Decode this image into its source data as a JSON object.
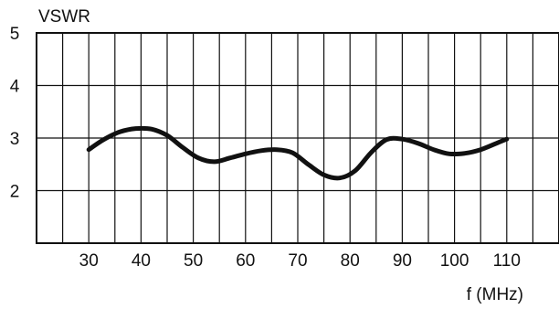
{
  "chart_data": {
    "type": "line",
    "ylabel": "VSWR",
    "xlabel": "f (MHz)",
    "xlim": [
      20,
      120
    ],
    "ylim": [
      1,
      5
    ],
    "x_ticks": [
      30,
      40,
      50,
      60,
      70,
      80,
      90,
      100,
      110
    ],
    "y_ticks": [
      2,
      3,
      4,
      5
    ],
    "grid": true,
    "x_grid_step": 5,
    "series": [
      {
        "x": [
          30,
          33,
          36,
          39,
          42,
          45,
          48,
          51,
          54,
          57,
          60,
          63,
          66,
          69,
          72,
          75,
          78,
          81,
          84,
          87,
          90,
          93,
          96,
          99,
          102,
          105,
          108,
          110
        ],
        "y": [
          2.78,
          2.98,
          3.12,
          3.18,
          3.17,
          3.05,
          2.82,
          2.62,
          2.55,
          2.62,
          2.7,
          2.76,
          2.78,
          2.72,
          2.5,
          2.3,
          2.24,
          2.38,
          2.72,
          2.97,
          2.98,
          2.9,
          2.78,
          2.7,
          2.71,
          2.78,
          2.9,
          2.98
        ]
      }
    ],
    "line_color": "#111111"
  }
}
